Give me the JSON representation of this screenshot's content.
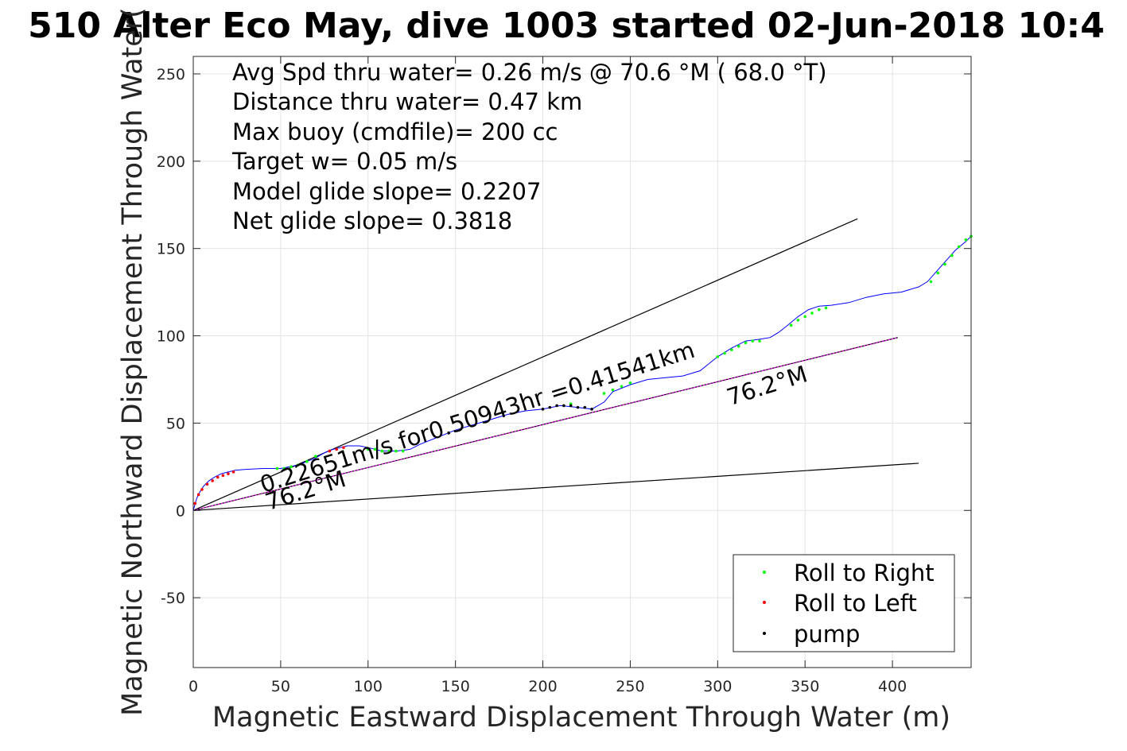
{
  "chart_data": {
    "type": "scatter",
    "title": "510 Alter Eco May, dive 1003 started 02-Jun-2018 10:4",
    "xlabel": "Magnetic Eastward Displacement Through Water (m)",
    "ylabel": "Magnetic Northward Displacement Through Water(",
    "xlim": [
      0,
      445
    ],
    "ylim": [
      -90,
      260
    ],
    "xticks": [
      0,
      50,
      100,
      150,
      200,
      250,
      300,
      350,
      400
    ],
    "yticks": [
      -50,
      0,
      50,
      100,
      150,
      200,
      250
    ],
    "grid": true,
    "info_lines": [
      "Avg Spd thru water=  0.26 m/s @  70.6 °M ( 68.0 °T)",
      "Distance thru water=  0.47 km",
      "Max buoy (cmdfile)= 200 cc",
      "Target w= 0.05 m/s",
      "Model glide slope= 0.2207",
      "Net glide slope= 0.3818"
    ],
    "annotations": [
      {
        "text": "0.22651m/s for0.50943hr =0.41541km",
        "x": 40,
        "y": 10,
        "angle_deg": 17.5
      },
      {
        "text": "76.2°M",
        "x": 43,
        "y": 0,
        "angle_deg": 17.5
      },
      {
        "text": "76.2°M",
        "x": 307,
        "y": 60,
        "angle_deg": 17.5
      }
    ],
    "reference_lines": [
      {
        "name": "upper-bound",
        "x": [
          0,
          380
        ],
        "y": [
          0,
          167
        ],
        "color": "#000000"
      },
      {
        "name": "lower-bound",
        "x": [
          0,
          415
        ],
        "y": [
          0,
          27
        ],
        "color": "#000000"
      },
      {
        "name": "heading-76.2",
        "x": [
          0,
          403
        ],
        "y": [
          0,
          99
        ],
        "color": "#000000"
      }
    ],
    "series": [
      {
        "name": "Roll to Right",
        "marker": "dot",
        "color": "#00ff00",
        "x": [
          48,
          52,
          56,
          60,
          65,
          70,
          100,
          104,
          108,
          112,
          116,
          120,
          212,
          216,
          235,
          240,
          245,
          250,
          300,
          304,
          308,
          312,
          316,
          320,
          324,
          342,
          346,
          350,
          354,
          358,
          362,
          422,
          426,
          430,
          434,
          438,
          442,
          445
        ],
        "y": [
          24,
          24,
          25,
          26,
          28,
          31,
          35,
          35,
          34,
          34,
          34,
          34,
          60,
          61,
          67,
          69,
          71,
          73,
          88,
          90,
          92,
          94,
          96,
          97,
          97,
          106,
          109,
          111,
          113,
          115,
          116,
          131,
          136,
          141,
          146,
          151,
          155,
          157
        ]
      },
      {
        "name": "Roll to Left",
        "marker": "dot",
        "color": "#ff0000",
        "x": [
          1,
          3,
          5,
          8,
          11,
          14,
          17,
          20,
          23,
          78,
          82,
          86
        ],
        "y": [
          4,
          9,
          12,
          15,
          17,
          19,
          20,
          21,
          22,
          34,
          35,
          36
        ]
      },
      {
        "name": "pump",
        "marker": "dot",
        "color": "#000000",
        "x": [
          200,
          204,
          208,
          212,
          216,
          220,
          224,
          228
        ],
        "y": [
          58,
          59,
          60,
          60,
          60,
          59,
          59,
          58
        ]
      }
    ],
    "track": {
      "color": "#0000ff",
      "x": [
        0,
        2,
        4,
        6,
        9,
        12,
        16,
        20,
        24,
        30,
        40,
        50,
        60,
        65,
        70,
        75,
        80,
        88,
        95,
        100,
        108,
        116,
        124,
        130,
        140,
        150,
        160,
        170,
        180,
        190,
        200,
        210,
        220,
        228,
        235,
        240,
        250,
        260,
        270,
        280,
        290,
        300,
        308,
        316,
        324,
        330,
        335,
        340,
        346,
        352,
        358,
        365,
        375,
        385,
        395,
        405,
        415,
        420,
        428,
        436,
        442,
        445
      ],
      "y": [
        0,
        7,
        11,
        14,
        17,
        19,
        21,
        22,
        23,
        23.5,
        24,
        24,
        26,
        28,
        30,
        33,
        35,
        37,
        37,
        36,
        34,
        34,
        35,
        38,
        42,
        46,
        49,
        52,
        55,
        57,
        58,
        60,
        59,
        58,
        62,
        68,
        72,
        75,
        76,
        77,
        80,
        88,
        93,
        97,
        98,
        99,
        102,
        106,
        111,
        115,
        117,
        117.5,
        119,
        122,
        124,
        125,
        128,
        131,
        140,
        149,
        154,
        157
      ]
    },
    "heading_track": {
      "color": "#ff00ff",
      "x": [
        0,
        403
      ],
      "y": [
        0,
        99
      ]
    },
    "legend": {
      "placement": "bottom-right",
      "entries": [
        {
          "label": "Roll to Right",
          "color": "#00ff00"
        },
        {
          "label": "Roll to Left",
          "color": "#ff0000"
        },
        {
          "label": "pump",
          "color": "#000000"
        }
      ]
    }
  }
}
